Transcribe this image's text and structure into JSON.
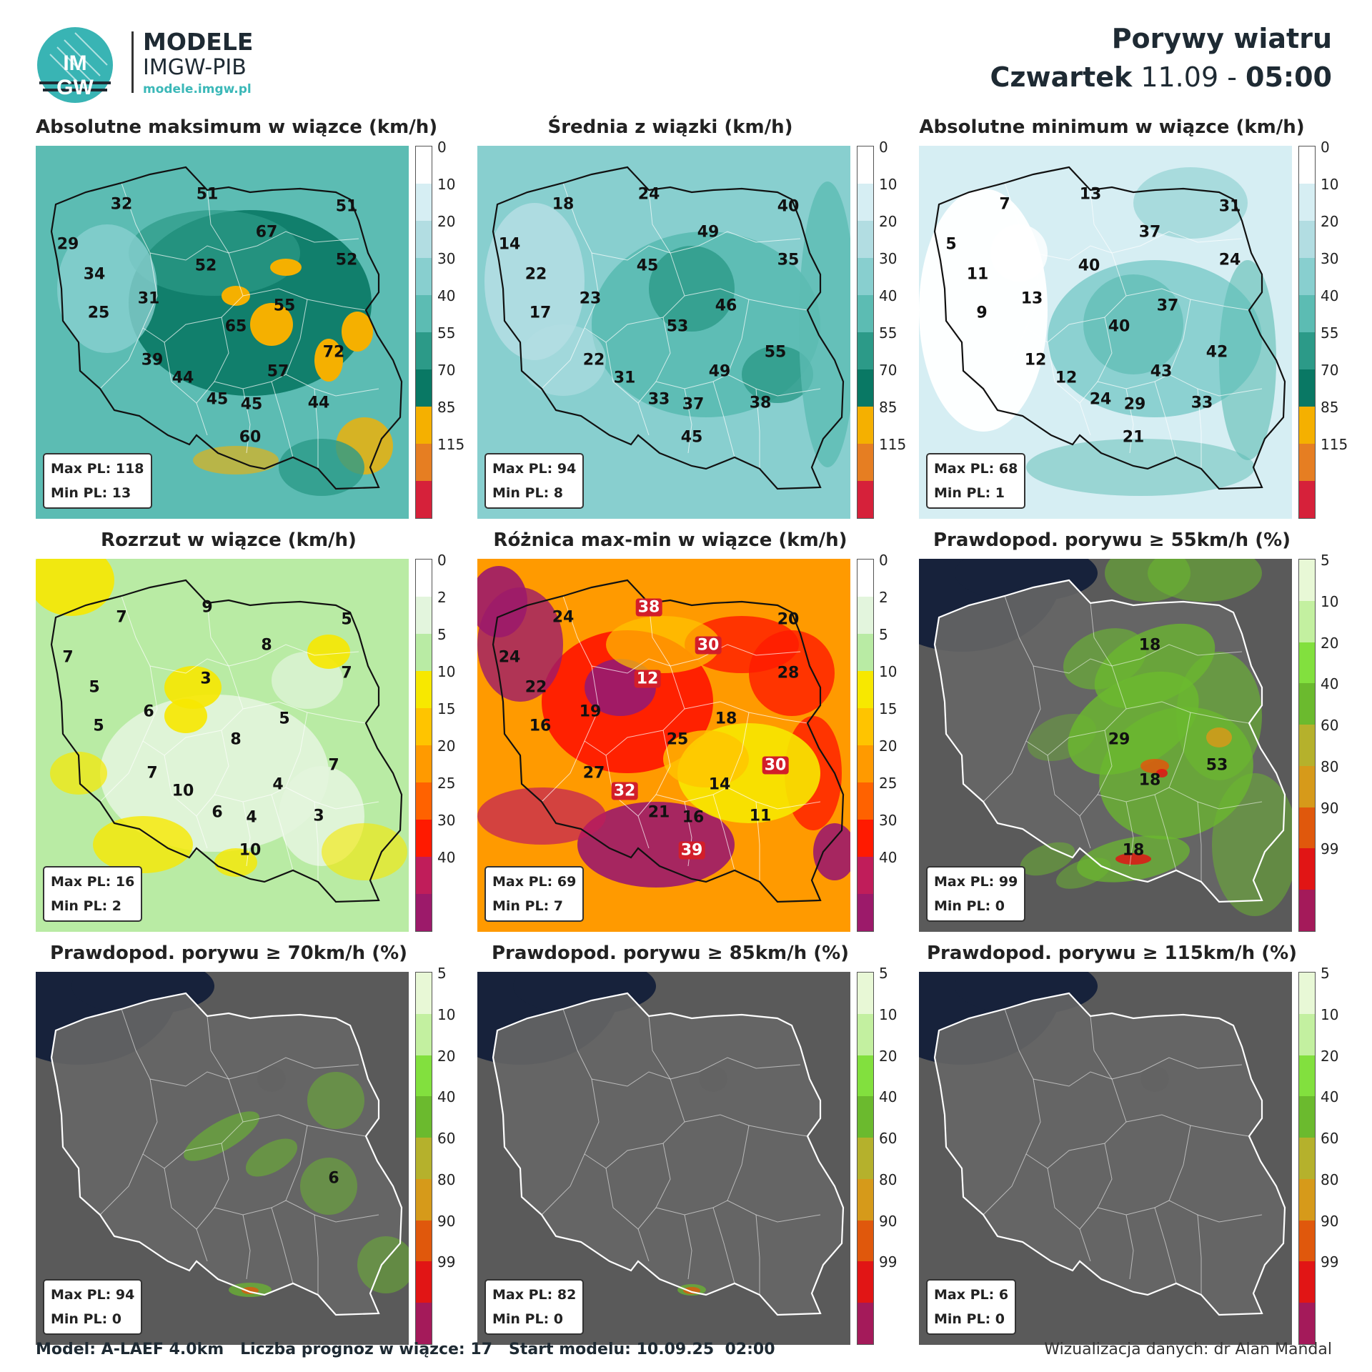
{
  "header": {
    "brand_title": "MODELE",
    "brand_sub": "IMGW-PIB",
    "brand_url": "modele.imgw.pl",
    "logo_text_top": "IM",
    "logo_text_bottom": "GW",
    "title": "Porywy wiatru",
    "day": "Czwartek",
    "date": "11.09",
    "separator": "-",
    "time": "05:00"
  },
  "colorbars": {
    "wind": {
      "labels": [
        "0",
        "10",
        "20",
        "30",
        "40",
        "55",
        "70",
        "85",
        "115"
      ],
      "colors": [
        "#ffffff",
        "#d6eef3",
        "#b2dde2",
        "#88cfcf",
        "#5cbcb3",
        "#2c9a88",
        "#097864",
        "#f5b000",
        "#e67e22",
        "#d6213a"
      ]
    },
    "spread": {
      "labels": [
        "0",
        "2",
        "5",
        "10",
        "15",
        "20",
        "25",
        "30",
        "40"
      ],
      "colors": [
        "#ffffff",
        "#e3f5dd",
        "#b9eba4",
        "#f7e800",
        "#ffc400",
        "#ff9a00",
        "#ff6200",
        "#ff1a00",
        "#c01d5a",
        "#9c1a6a"
      ]
    },
    "prob": {
      "labels": [
        "5",
        "10",
        "20",
        "40",
        "60",
        "80",
        "90",
        "99"
      ],
      "colors": [
        "#e8f8d6",
        "#c3f0a0",
        "#82e03e",
        "#6bba2e",
        "#b5b12c",
        "#d69a1a",
        "#e0580c",
        "#e11515",
        "#a41a5a"
      ]
    }
  },
  "panels": [
    {
      "title": "Absolutne maksimum w wiązce (km/h)",
      "scale": "wind",
      "base": "teal",
      "max_label": "Max PL: 118",
      "min_label": "Min PL: 13",
      "values": [
        {
          "v": "51"
        },
        {
          "v": "32"
        },
        {
          "v": "51"
        },
        {
          "v": "29"
        },
        {
          "v": "67"
        },
        {
          "v": "52"
        },
        {
          "v": "34"
        },
        {
          "v": "52"
        },
        {
          "v": "31"
        },
        {
          "v": "55"
        },
        {
          "v": "25"
        },
        {
          "v": "65"
        },
        {
          "v": "72"
        },
        {
          "v": "39"
        },
        {
          "v": "57"
        },
        {
          "v": "44"
        },
        {
          "v": "45"
        },
        {
          "v": "45"
        },
        {
          "v": "44"
        },
        {
          "v": "60"
        }
      ]
    },
    {
      "title": "Średnia z wiązki (km/h)",
      "scale": "wind",
      "base": "teal2",
      "max_label": "Max PL: 94",
      "min_label": "Min PL: 8",
      "values": [
        {
          "v": "24"
        },
        {
          "v": "18"
        },
        {
          "v": "40"
        },
        {
          "v": "14"
        },
        {
          "v": "49"
        },
        {
          "v": "45"
        },
        {
          "v": "22"
        },
        {
          "v": "35"
        },
        {
          "v": "23"
        },
        {
          "v": "46"
        },
        {
          "v": "17"
        },
        {
          "v": "53"
        },
        {
          "v": "55"
        },
        {
          "v": "22"
        },
        {
          "v": "49"
        },
        {
          "v": "31"
        },
        {
          "v": "33"
        },
        {
          "v": "37"
        },
        {
          "v": "38"
        },
        {
          "v": "45"
        }
      ]
    },
    {
      "title": "Absolutne minimum w wiązce (km/h)",
      "scale": "wind",
      "base": "white",
      "max_label": "Max PL: 68",
      "min_label": "Min PL: 1",
      "values": [
        {
          "v": "13"
        },
        {
          "v": "7"
        },
        {
          "v": "31"
        },
        {
          "v": "5"
        },
        {
          "v": "37"
        },
        {
          "v": "40"
        },
        {
          "v": "11"
        },
        {
          "v": "24"
        },
        {
          "v": "13"
        },
        {
          "v": "37"
        },
        {
          "v": "9"
        },
        {
          "v": "40"
        },
        {
          "v": "42"
        },
        {
          "v": "12"
        },
        {
          "v": "43"
        },
        {
          "v": "12"
        },
        {
          "v": "24"
        },
        {
          "v": "29"
        },
        {
          "v": "33"
        },
        {
          "v": "21"
        }
      ]
    },
    {
      "title": "Rozrzut w wiązce (km/h)",
      "scale": "spread",
      "base": "green",
      "max_label": "Max PL: 16",
      "min_label": "Min PL: 2",
      "values": [
        {
          "v": "9"
        },
        {
          "v": "7"
        },
        {
          "v": "5"
        },
        {
          "v": "7"
        },
        {
          "v": "8"
        },
        {
          "v": "3"
        },
        {
          "v": "5"
        },
        {
          "v": "7"
        },
        {
          "v": "6"
        },
        {
          "v": "5"
        },
        {
          "v": "5"
        },
        {
          "v": "8"
        },
        {
          "v": "7"
        },
        {
          "v": "7"
        },
        {
          "v": "4"
        },
        {
          "v": "10"
        },
        {
          "v": "6"
        },
        {
          "v": "4"
        },
        {
          "v": "3"
        },
        {
          "v": "10"
        }
      ]
    },
    {
      "title": "Różnica max-min w wiązce (km/h)",
      "scale": "spread",
      "base": "hot",
      "max_label": "Max PL: 69",
      "min_label": "Min PL: 7",
      "values": [
        {
          "v": "38",
          "hi": true
        },
        {
          "v": "24"
        },
        {
          "v": "20"
        },
        {
          "v": "24"
        },
        {
          "v": "30",
          "hi": true
        },
        {
          "v": "12",
          "hi": true
        },
        {
          "v": "22"
        },
        {
          "v": "28"
        },
        {
          "v": "19"
        },
        {
          "v": "18"
        },
        {
          "v": "16"
        },
        {
          "v": "25"
        },
        {
          "v": "30",
          "hi": true
        },
        {
          "v": "27"
        },
        {
          "v": "14"
        },
        {
          "v": "32",
          "hi": true
        },
        {
          "v": "21"
        },
        {
          "v": "16"
        },
        {
          "v": "11"
        },
        {
          "v": "39",
          "hi": true
        }
      ]
    },
    {
      "title": "Prawdopod. porywu ≥ 55km/h (%)",
      "scale": "prob",
      "base": "dark",
      "max_label": "Max PL: 99",
      "min_label": "Min PL: 0",
      "values": [
        {
          "v": "18"
        },
        {
          "v": "29"
        },
        {
          "v": "18"
        },
        {
          "v": "53"
        },
        {
          "v": "18"
        }
      ]
    },
    {
      "title": "Prawdopod. porywu ≥ 70km/h (%)",
      "scale": "prob",
      "base": "dark",
      "max_label": "Max PL: 94",
      "min_label": "Min PL: 0",
      "values": [
        {
          "v": "6"
        }
      ]
    },
    {
      "title": "Prawdopod. porywu ≥ 85km/h (%)",
      "scale": "prob",
      "base": "dark",
      "max_label": "Max PL: 82",
      "min_label": "Min PL: 0",
      "values": []
    },
    {
      "title": "Prawdopod. porywu ≥ 115km/h (%)",
      "scale": "prob",
      "base": "dark",
      "max_label": "Max PL: 6",
      "min_label": "Min PL: 0",
      "values": []
    }
  ],
  "footer": {
    "model": "Model: A-LAEF 4.0km",
    "members": "Liczba prognoz w wiązce: 17",
    "start": "Start modelu: 10.09.25  02:00",
    "credit": "Wizualizacja danych: dr Alan Mandal"
  }
}
